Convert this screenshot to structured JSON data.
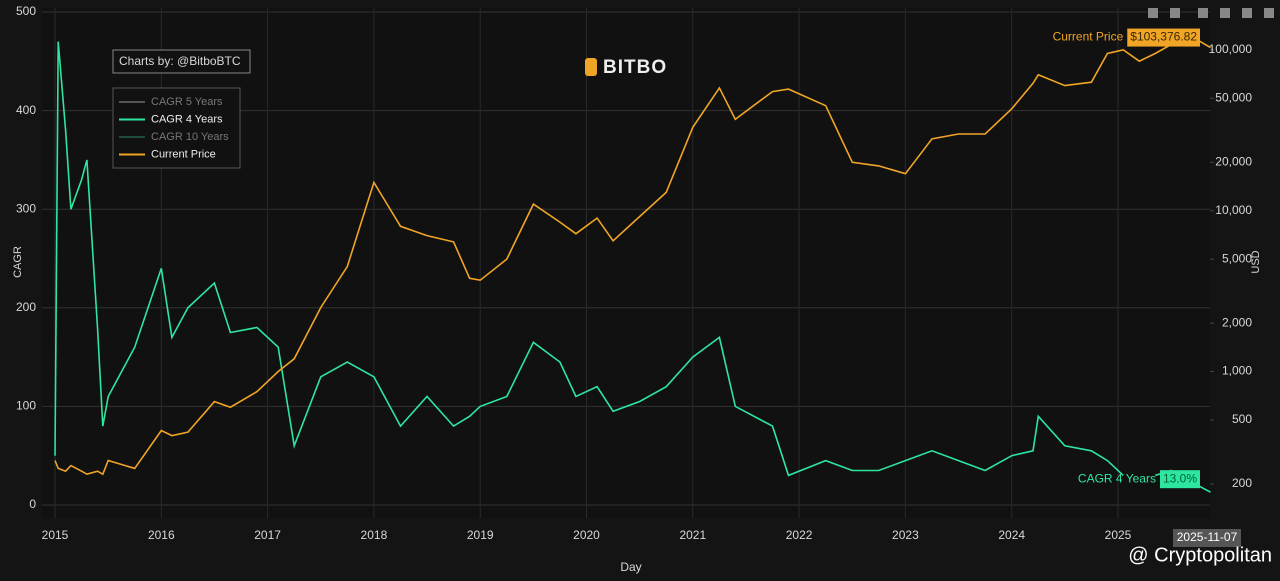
{
  "chart_data": {
    "type": "line",
    "x_label": "Day",
    "y_label": "CAGR",
    "y2_label": "USD",
    "annotation": "Charts by: @BitboBTC",
    "logo": "BITBO",
    "watermark": "@ Cryptopolitan",
    "cursor_label": "2025-11-07",
    "x": [
      2015.0,
      2015.03,
      2015.1,
      2015.15,
      2015.25,
      2015.3,
      2015.4,
      2015.45,
      2015.5,
      2015.75,
      2016.0,
      2016.1,
      2016.25,
      2016.5,
      2016.65,
      2016.9,
      2017.1,
      2017.25,
      2017.5,
      2017.75,
      2018.0,
      2018.25,
      2018.5,
      2018.75,
      2018.9,
      2019.0,
      2019.25,
      2019.5,
      2019.75,
      2019.9,
      2020.1,
      2020.25,
      2020.5,
      2020.75,
      2021.0,
      2021.25,
      2021.4,
      2021.75,
      2021.9,
      2022.25,
      2022.5,
      2022.75,
      2023.0,
      2023.25,
      2023.5,
      2023.75,
      2024.0,
      2024.2,
      2024.25,
      2024.5,
      2024.75,
      2024.9,
      2025.05,
      2025.2,
      2025.35,
      2025.5,
      2025.75,
      2025.87
    ],
    "xlim": [
      2015,
      2025.87
    ],
    "xticks": [
      2015,
      2016,
      2017,
      2018,
      2019,
      2020,
      2021,
      2022,
      2023,
      2024,
      2025
    ],
    "ylim": [
      0,
      500
    ],
    "yticks": [
      0,
      100,
      200,
      300,
      400,
      500
    ],
    "y2lim": [
      148,
      172000
    ],
    "y2_log": true,
    "y2ticks": [
      200,
      500,
      {
        "value": 1000,
        "label": "1,000"
      },
      {
        "value": 2000,
        "label": "2,000"
      },
      {
        "value": 5000,
        "label": "5,000"
      },
      {
        "value": 10000,
        "label": "10,000"
      },
      {
        "value": 20000,
        "label": "20,000"
      },
      {
        "value": 50000,
        "label": "50,000"
      },
      {
        "value": 100000,
        "label": "100,000"
      }
    ],
    "grid": true,
    "series": [
      {
        "name": "CAGR 5 Years",
        "color": "#555555",
        "visible": false,
        "values": [
          null,
          null,
          null,
          null,
          null,
          null,
          null,
          null,
          null,
          null,
          null,
          null,
          null,
          null,
          null,
          null,
          null,
          null,
          null,
          null,
          null,
          null,
          null,
          null,
          null,
          null,
          null,
          null,
          null,
          null,
          null,
          null,
          null,
          null,
          null,
          null,
          null,
          null,
          null,
          null,
          null,
          null,
          null,
          null,
          null,
          null,
          null,
          null,
          null,
          null,
          null,
          null,
          null,
          null,
          null,
          null,
          null,
          null
        ]
      },
      {
        "name": "CAGR 4 Years",
        "color": "#2ee6a0",
        "values": [
          50,
          470,
          380,
          300,
          330,
          350,
          180,
          80,
          110,
          160,
          240,
          170,
          200,
          225,
          175,
          180,
          160,
          60,
          130,
          145,
          130,
          80,
          110,
          80,
          90,
          100,
          110,
          165,
          145,
          110,
          120,
          95,
          105,
          120,
          150,
          170,
          100,
          80,
          30,
          45,
          35,
          35,
          45,
          55,
          45,
          35,
          50,
          55,
          90,
          60,
          55,
          45,
          30,
          null,
          30,
          35,
          20,
          13.0
        ],
        "value_labels": [
          null,
          null,
          null,
          null,
          null,
          null,
          null,
          null,
          null,
          null,
          null,
          null,
          null,
          null,
          null,
          null,
          null,
          null,
          null,
          null,
          null,
          null,
          null,
          null,
          null,
          null,
          null,
          null,
          null,
          null,
          null,
          null,
          null,
          null,
          null,
          null,
          null,
          null,
          null,
          null,
          null,
          null,
          null,
          null,
          null,
          null,
          null,
          null,
          null,
          null,
          null,
          null,
          null,
          null,
          null,
          null,
          null,
          "13.0%"
        ]
      },
      {
        "name": "CAGR 10 Years",
        "color": "#1f4d3a",
        "visible": false,
        "values": [
          null,
          null,
          null,
          null,
          null,
          null,
          null,
          null,
          null,
          null,
          null,
          null,
          null,
          null,
          null,
          null,
          null,
          null,
          null,
          null,
          null,
          null,
          null,
          null,
          null,
          null,
          null,
          null,
          null,
          null,
          null,
          null,
          null,
          null,
          null,
          null,
          null,
          null,
          null,
          null,
          null,
          null,
          null,
          null,
          null,
          null,
          null,
          null,
          null,
          null,
          null,
          null,
          null,
          null,
          null,
          null,
          null,
          null
        ]
      },
      {
        "name": "Current Price",
        "color": "#f0a526",
        "axis": "y2",
        "values": [
          280,
          250,
          240,
          260,
          240,
          230,
          240,
          230,
          280,
          250,
          430,
          400,
          420,
          650,
          600,
          750,
          1000,
          1200,
          2500,
          4500,
          15000,
          8000,
          7000,
          6400,
          3800,
          3700,
          5000,
          11000,
          8500,
          7200,
          9000,
          6500,
          9200,
          13000,
          33000,
          58000,
          37000,
          55000,
          57000,
          45000,
          20000,
          19000,
          17000,
          28000,
          30000,
          30000,
          43000,
          62000,
          70000,
          60000,
          63000,
          95000,
          100000,
          85000,
          95000,
          108000,
          115000,
          103376.82
        ],
        "value_labels": [
          null,
          null,
          null,
          null,
          null,
          null,
          null,
          null,
          null,
          null,
          null,
          null,
          null,
          null,
          null,
          null,
          null,
          null,
          null,
          null,
          null,
          null,
          null,
          null,
          null,
          null,
          null,
          null,
          null,
          null,
          null,
          null,
          null,
          null,
          null,
          null,
          null,
          null,
          null,
          null,
          null,
          null,
          null,
          null,
          null,
          null,
          null,
          null,
          null,
          null,
          null,
          null,
          null,
          null,
          null,
          null,
          null,
          "$103,376.82"
        ]
      }
    ]
  }
}
